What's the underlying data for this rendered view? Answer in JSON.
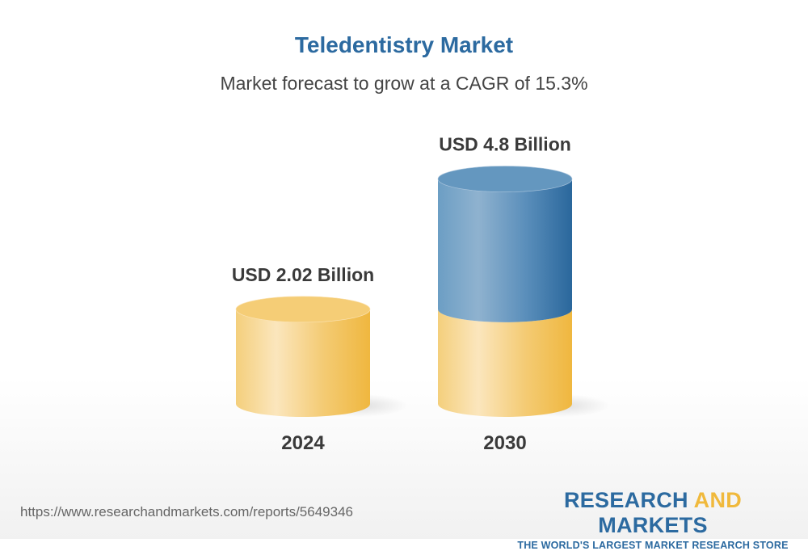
{
  "title": "Teledentistry Market",
  "subtitle": "Market forecast to grow at a CAGR of 15.3%",
  "chart_data": {
    "type": "bar",
    "style": "3d-cylinder",
    "categories": [
      "2024",
      "2030"
    ],
    "values": [
      2.02,
      4.8
    ],
    "data_labels": [
      "USD 2.02 Billion",
      "USD 4.8 Billion"
    ],
    "unit": "USD Billion",
    "colors": {
      "base": "#f3c35a",
      "growth": "#2c6aa0"
    },
    "grid": false,
    "ylim": [
      0,
      4.8
    ]
  },
  "footer": {
    "url": "https://www.researchandmarkets.com/reports/5649346",
    "logo_part1": "RESEARCH ",
    "logo_part2": "AND",
    "logo_part3": " MARKETS",
    "tagline": "THE WORLD'S LARGEST MARKET RESEARCH STORE"
  }
}
